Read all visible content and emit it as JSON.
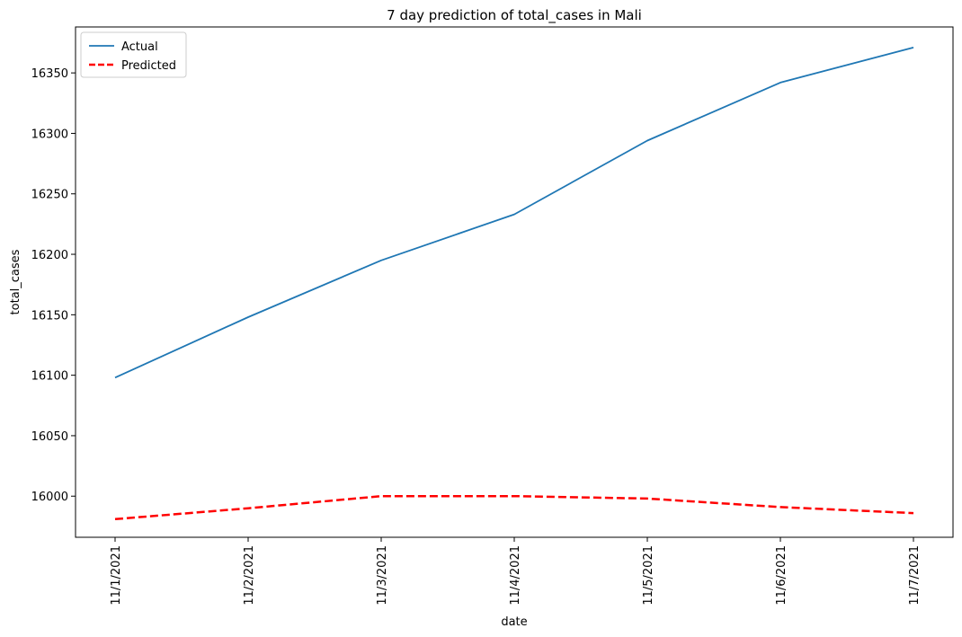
{
  "chart_data": {
    "type": "line",
    "title": "7 day prediction of total_cases in Mali",
    "xlabel": "date",
    "ylabel": "total_cases",
    "categories": [
      "11/1/2021",
      "11/2/2021",
      "11/3/2021",
      "11/4/2021",
      "11/5/2021",
      "11/6/2021",
      "11/7/2021"
    ],
    "series": [
      {
        "name": "Actual",
        "values": [
          16098,
          16148,
          16195,
          16233,
          16294,
          16342,
          16371
        ],
        "color": "#1f77b4",
        "style": "solid"
      },
      {
        "name": "Predicted",
        "values": [
          15981,
          15990,
          16000,
          16000,
          15998,
          15991,
          15986
        ],
        "color": "#ff0000",
        "style": "dashed"
      }
    ],
    "yticks": [
      16000,
      16050,
      16100,
      16150,
      16200,
      16250,
      16300,
      16350
    ],
    "ylim": [
      15966,
      16388
    ],
    "grid": false,
    "legend": "top-left"
  }
}
